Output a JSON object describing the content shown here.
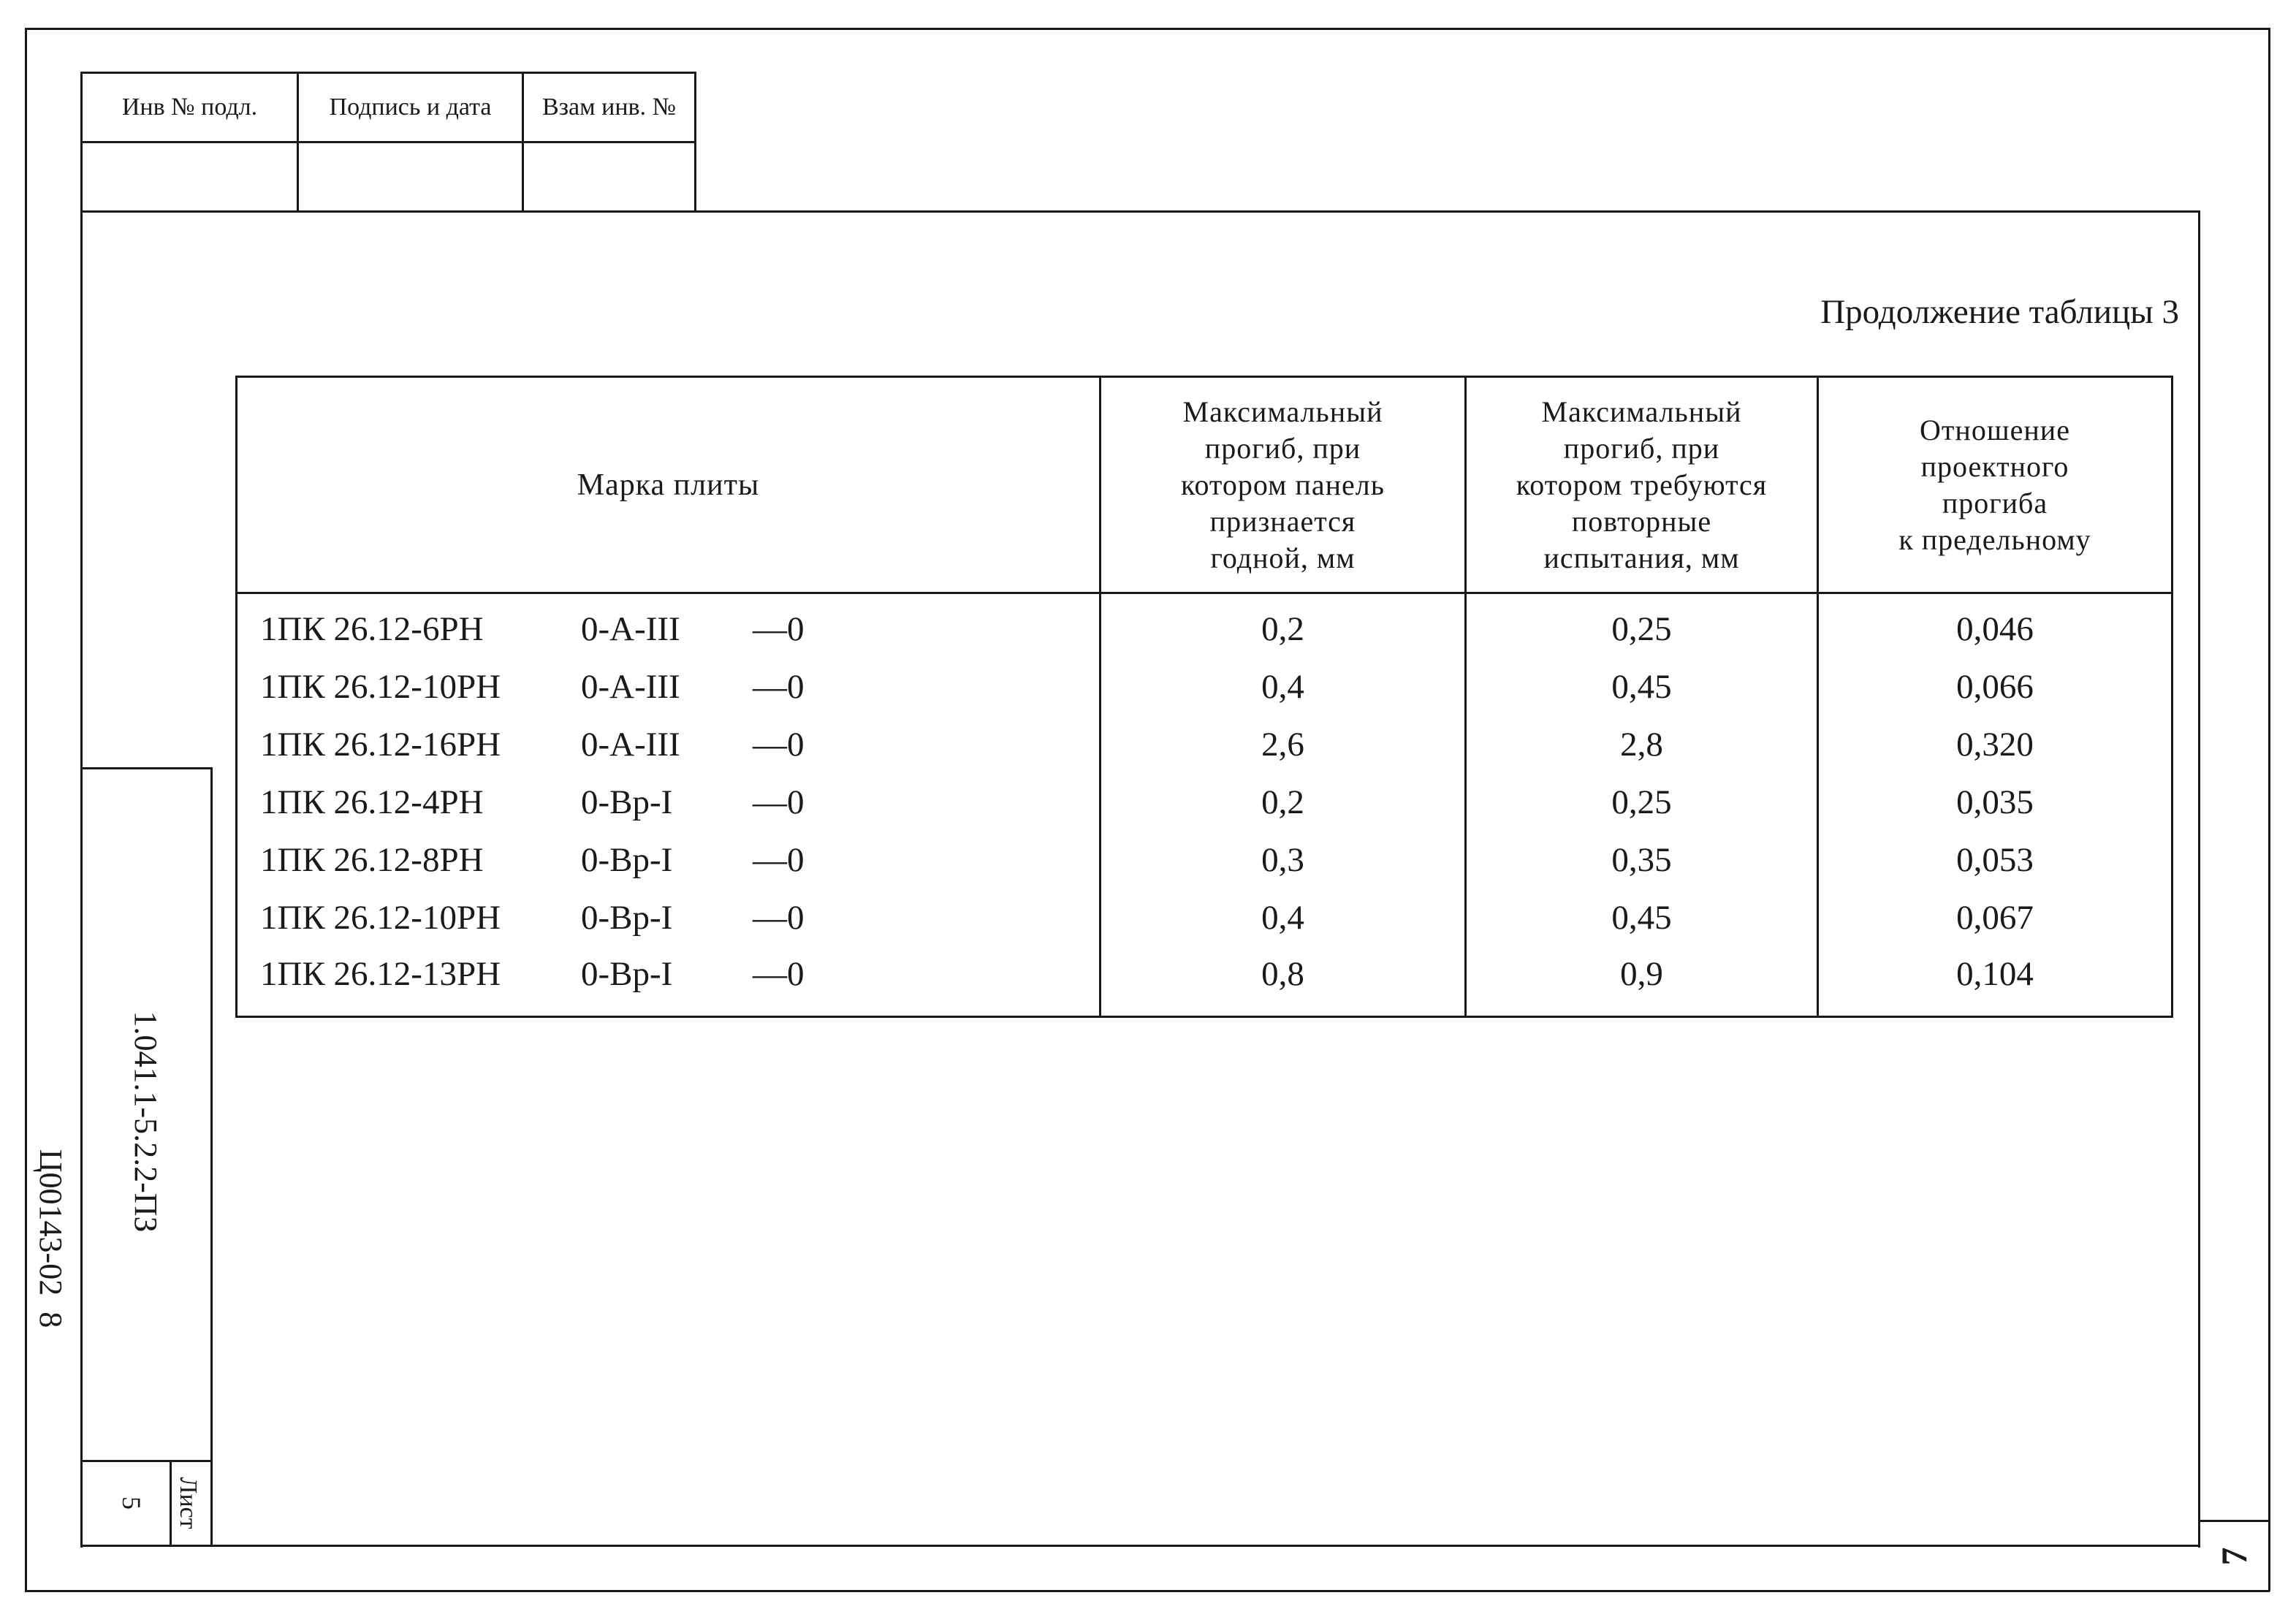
{
  "stamp": {
    "headers": [
      "Инв № подл.",
      "Подпись и дата",
      "Взам инв. №"
    ]
  },
  "continuation_title": "Продолжение таблицы 3",
  "table": {
    "headers": {
      "mark": "Марка плиты",
      "max_deflection_ok": "Максимальный\nпрогиб, при\nкотором панель\nпризнается\nгодной, мм",
      "max_deflection_retest": "Максимальный\nпрогиб, при\nкотором требуются\nповторные\nиспытания, мм",
      "ratio": "Отношение\nпроектного\nпрогиба\nк предельному"
    },
    "rows": [
      {
        "mark": "1ПК 26.12-6РН",
        "reinf": "0-А-III",
        "suffix": "—0",
        "ok": "0,2",
        "retest": "0,25",
        "ratio": "0,046"
      },
      {
        "mark": "1ПК 26.12-10РН",
        "reinf": "0-А-III",
        "suffix": "—0",
        "ok": "0,4",
        "retest": "0,45",
        "ratio": "0,066"
      },
      {
        "mark": "1ПК 26.12-16РН",
        "reinf": "0-А-III",
        "suffix": "—0",
        "ok": "2,6",
        "retest": "2,8",
        "ratio": "0,320"
      },
      {
        "mark": "1ПК 26.12-4РН",
        "reinf": "0-Вр-I",
        "suffix": "—0",
        "ok": "0,2",
        "retest": "0,25",
        "ratio": "0,035"
      },
      {
        "mark": "1ПК 26.12-8РН",
        "reinf": "0-Вр-I",
        "suffix": "—0",
        "ok": "0,3",
        "retest": "0,35",
        "ratio": "0,053"
      },
      {
        "mark": "1ПК 26.12-10РН",
        "reinf": "0-Вр-I",
        "suffix": "—0",
        "ok": "0,4",
        "retest": "0,45",
        "ratio": "0,067"
      },
      {
        "mark": "1ПК 26.12-13РН",
        "reinf": "0-Вр-I",
        "suffix": "—0",
        "ok": "0,8",
        "retest": "0,9",
        "ratio": "0,104"
      }
    ]
  },
  "side_block": {
    "document_code": "1.041.1-5.2.2-ПЗ",
    "sheet_label": "Лист",
    "sheet_number": "5"
  },
  "archive_code": "Ц00143-02  8",
  "page_number": "7"
}
